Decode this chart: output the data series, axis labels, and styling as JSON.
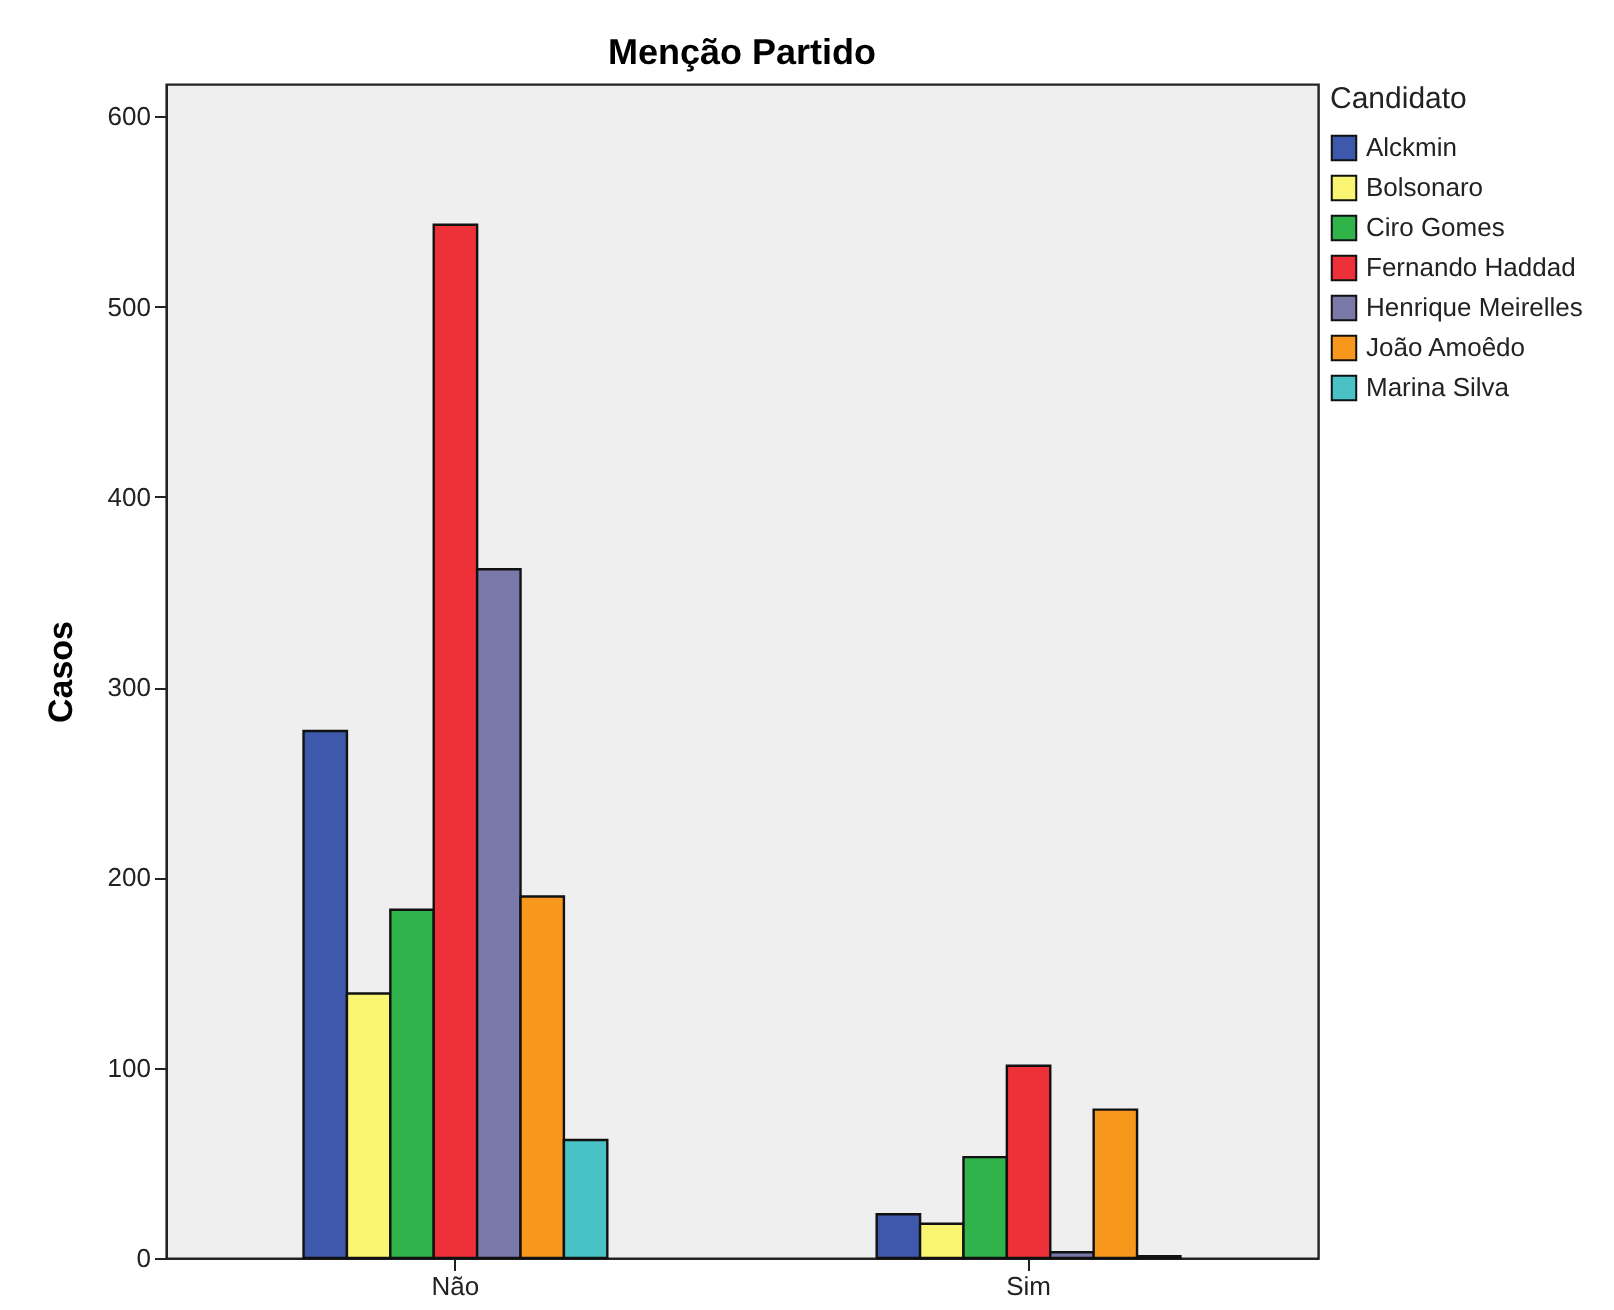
{
  "chart_data": {
    "type": "bar",
    "title": "Menção Partido",
    "ylabel": "Casos",
    "legend_title": "Candidato",
    "categories": [
      "Não",
      "Sim"
    ],
    "series": [
      {
        "name": "Alckmin",
        "color": "#3e58ac",
        "values": [
          277,
          23
        ]
      },
      {
        "name": "Bolsonaro",
        "color": "#f9f573",
        "values": [
          139,
          18
        ]
      },
      {
        "name": "Ciro Gomes",
        "color": "#2fb34a",
        "values": [
          183,
          53
        ]
      },
      {
        "name": "Fernando Haddad",
        "color": "#ee3039",
        "values": [
          543,
          101
        ]
      },
      {
        "name": "Henrique Meirelles",
        "color": "#7a79a9",
        "values": [
          362,
          3
        ]
      },
      {
        "name": "João Amoêdo",
        "color": "#f7981d",
        "values": [
          190,
          78
        ]
      },
      {
        "name": "Marina Silva",
        "color": "#49c2c6",
        "values": [
          62,
          1
        ]
      }
    ],
    "ylim": [
      0,
      617
    ],
    "yticks": [
      0,
      100,
      200,
      300,
      400,
      500,
      600
    ],
    "grid": false,
    "legend": "top right"
  }
}
